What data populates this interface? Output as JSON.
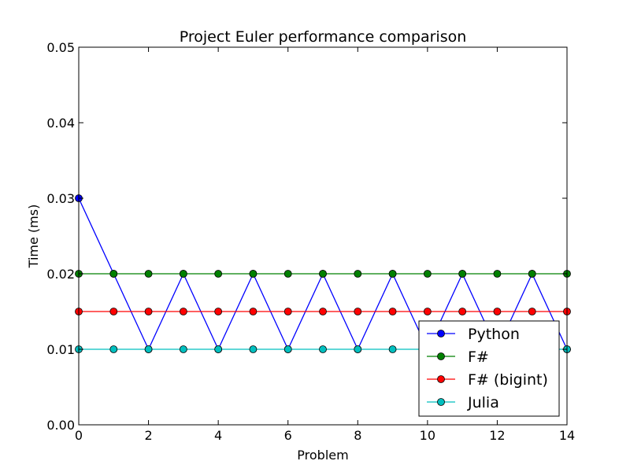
{
  "chart_data": {
    "type": "line",
    "title": "Project Euler performance comparison",
    "xlabel": "Problem",
    "ylabel": "Time (ms)",
    "xlim": [
      0,
      14
    ],
    "ylim": [
      0,
      0.05
    ],
    "xticks": [
      0,
      2,
      4,
      6,
      8,
      10,
      12,
      14
    ],
    "xtick_labels": [
      "0",
      "2",
      "4",
      "6",
      "8",
      "10",
      "12",
      "14"
    ],
    "yticks": [
      0,
      0.01,
      0.02,
      0.03,
      0.04,
      0.05
    ],
    "ytick_labels": [
      "0.00",
      "0.01",
      "0.02",
      "0.03",
      "0.04",
      "0.05"
    ],
    "grid": false,
    "legend_position": "bottom-right",
    "x": [
      0,
      1,
      2,
      3,
      4,
      5,
      6,
      7,
      8,
      9,
      10,
      11,
      12,
      13,
      14
    ],
    "series": [
      {
        "name": "Python",
        "color": "#0000ff",
        "marker": "circle",
        "values": [
          0.03,
          0.02,
          0.01,
          0.02,
          0.01,
          0.02,
          0.01,
          0.02,
          0.01,
          0.02,
          0.01,
          0.02,
          0.01,
          0.02,
          0.01
        ]
      },
      {
        "name": "F#",
        "color": "#008000",
        "marker": "circle",
        "values": [
          0.02,
          0.02,
          0.02,
          0.02,
          0.02,
          0.02,
          0.02,
          0.02,
          0.02,
          0.02,
          0.02,
          0.02,
          0.02,
          0.02,
          0.02
        ]
      },
      {
        "name": "F# (bigint)",
        "color": "#ff0000",
        "marker": "circle",
        "values": [
          0.015,
          0.015,
          0.015,
          0.015,
          0.015,
          0.015,
          0.015,
          0.015,
          0.015,
          0.015,
          0.015,
          0.015,
          0.015,
          0.015,
          0.015
        ]
      },
      {
        "name": "Julia",
        "color": "#00bfbf",
        "marker": "circle",
        "values": [
          0.01,
          0.01,
          0.01,
          0.01,
          0.01,
          0.01,
          0.01,
          0.01,
          0.01,
          0.01,
          0.01,
          0.01,
          0.01,
          0.01,
          0.01
        ]
      }
    ]
  }
}
